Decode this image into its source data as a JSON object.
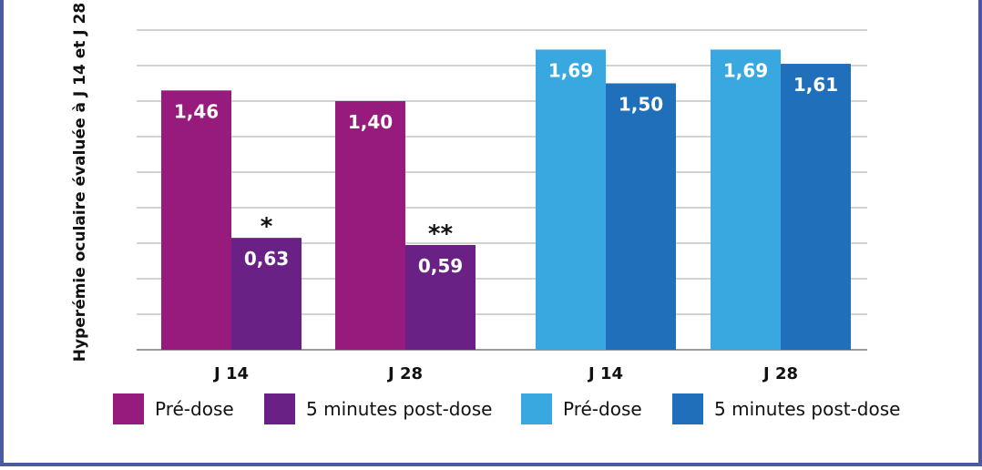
{
  "chart_data": {
    "type": "bar",
    "ylabel": "Hyperémie oculaire évaluée à J 14 et J 28",
    "ylim": [
      0,
      1.8
    ],
    "grid": true,
    "groups": [
      {
        "categories": [
          "J 14",
          "J 28"
        ],
        "series": [
          {
            "name": "Pré-dose",
            "color": "#961b7c",
            "values": [
              1.46,
              1.4
            ],
            "labels": [
              "1,46",
              "1,40"
            ]
          },
          {
            "name": "5 minutes post-dose",
            "color": "#6a2186",
            "values": [
              0.63,
              0.59
            ],
            "labels": [
              "0,63",
              "0,59"
            ]
          }
        ],
        "annotations": [
          "*",
          "**"
        ]
      },
      {
        "categories": [
          "J 14",
          "J 28"
        ],
        "series": [
          {
            "name": "Pré-dose",
            "color": "#3aa8e0",
            "values": [
              1.69,
              1.69
            ],
            "labels": [
              "1,69",
              "1,69"
            ]
          },
          {
            "name": "5 minutes post-dose",
            "color": "#1f6fbb",
            "values": [
              1.5,
              1.61
            ],
            "labels": [
              "1,50",
              "1,61"
            ]
          }
        ]
      }
    ],
    "legend": [
      {
        "label": "Pré-dose",
        "color": "#961b7c"
      },
      {
        "label": "5 minutes post-dose",
        "color": "#6a2186"
      },
      {
        "label": "Pré-dose",
        "color": "#3aa8e0"
      },
      {
        "label": "5 minutes post-dose",
        "color": "#1f6fbb"
      }
    ]
  }
}
